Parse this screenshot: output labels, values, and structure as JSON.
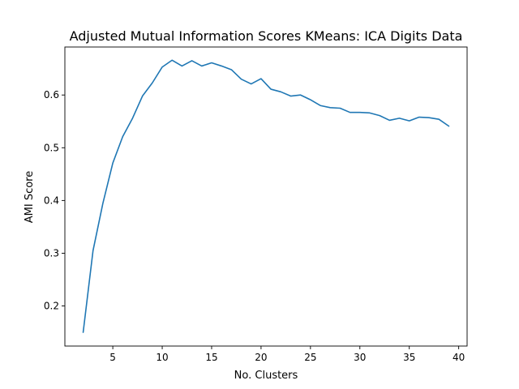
{
  "chart_data": {
    "type": "line",
    "title": "Adjusted Mutual Information Scores KMeans: ICA Digits Data",
    "xlabel": "No. Clusters",
    "ylabel": "AMI Score",
    "xlim": [
      0.15,
      40.85
    ],
    "ylim": [
      0.124,
      0.691
    ],
    "xticks": [
      5,
      10,
      15,
      20,
      25,
      30,
      35,
      40
    ],
    "yticks": [
      0.2,
      0.3,
      0.4,
      0.5,
      0.6
    ],
    "xtick_labels": [
      "5",
      "10",
      "15",
      "20",
      "25",
      "30",
      "35",
      "40"
    ],
    "ytick_labels": [
      "0.2",
      "0.3",
      "0.4",
      "0.5",
      "0.6"
    ],
    "line_color": "#1f77b4",
    "grid": false,
    "series": [
      {
        "name": "AMI",
        "x": [
          2,
          3,
          4,
          5,
          6,
          7,
          8,
          9,
          10,
          11,
          12,
          13,
          14,
          15,
          16,
          17,
          18,
          19,
          20,
          21,
          22,
          23,
          24,
          25,
          26,
          27,
          28,
          29,
          30,
          31,
          32,
          33,
          34,
          35,
          36,
          37,
          38,
          39
        ],
        "y": [
          0.15,
          0.305,
          0.395,
          0.471,
          0.521,
          0.556,
          0.598,
          0.623,
          0.653,
          0.666,
          0.655,
          0.665,
          0.655,
          0.661,
          0.655,
          0.648,
          0.63,
          0.621,
          0.631,
          0.611,
          0.606,
          0.598,
          0.6,
          0.591,
          0.58,
          0.576,
          0.575,
          0.567,
          0.567,
          0.566,
          0.561,
          0.552,
          0.556,
          0.551,
          0.558,
          0.557,
          0.554,
          0.541
        ]
      }
    ]
  }
}
